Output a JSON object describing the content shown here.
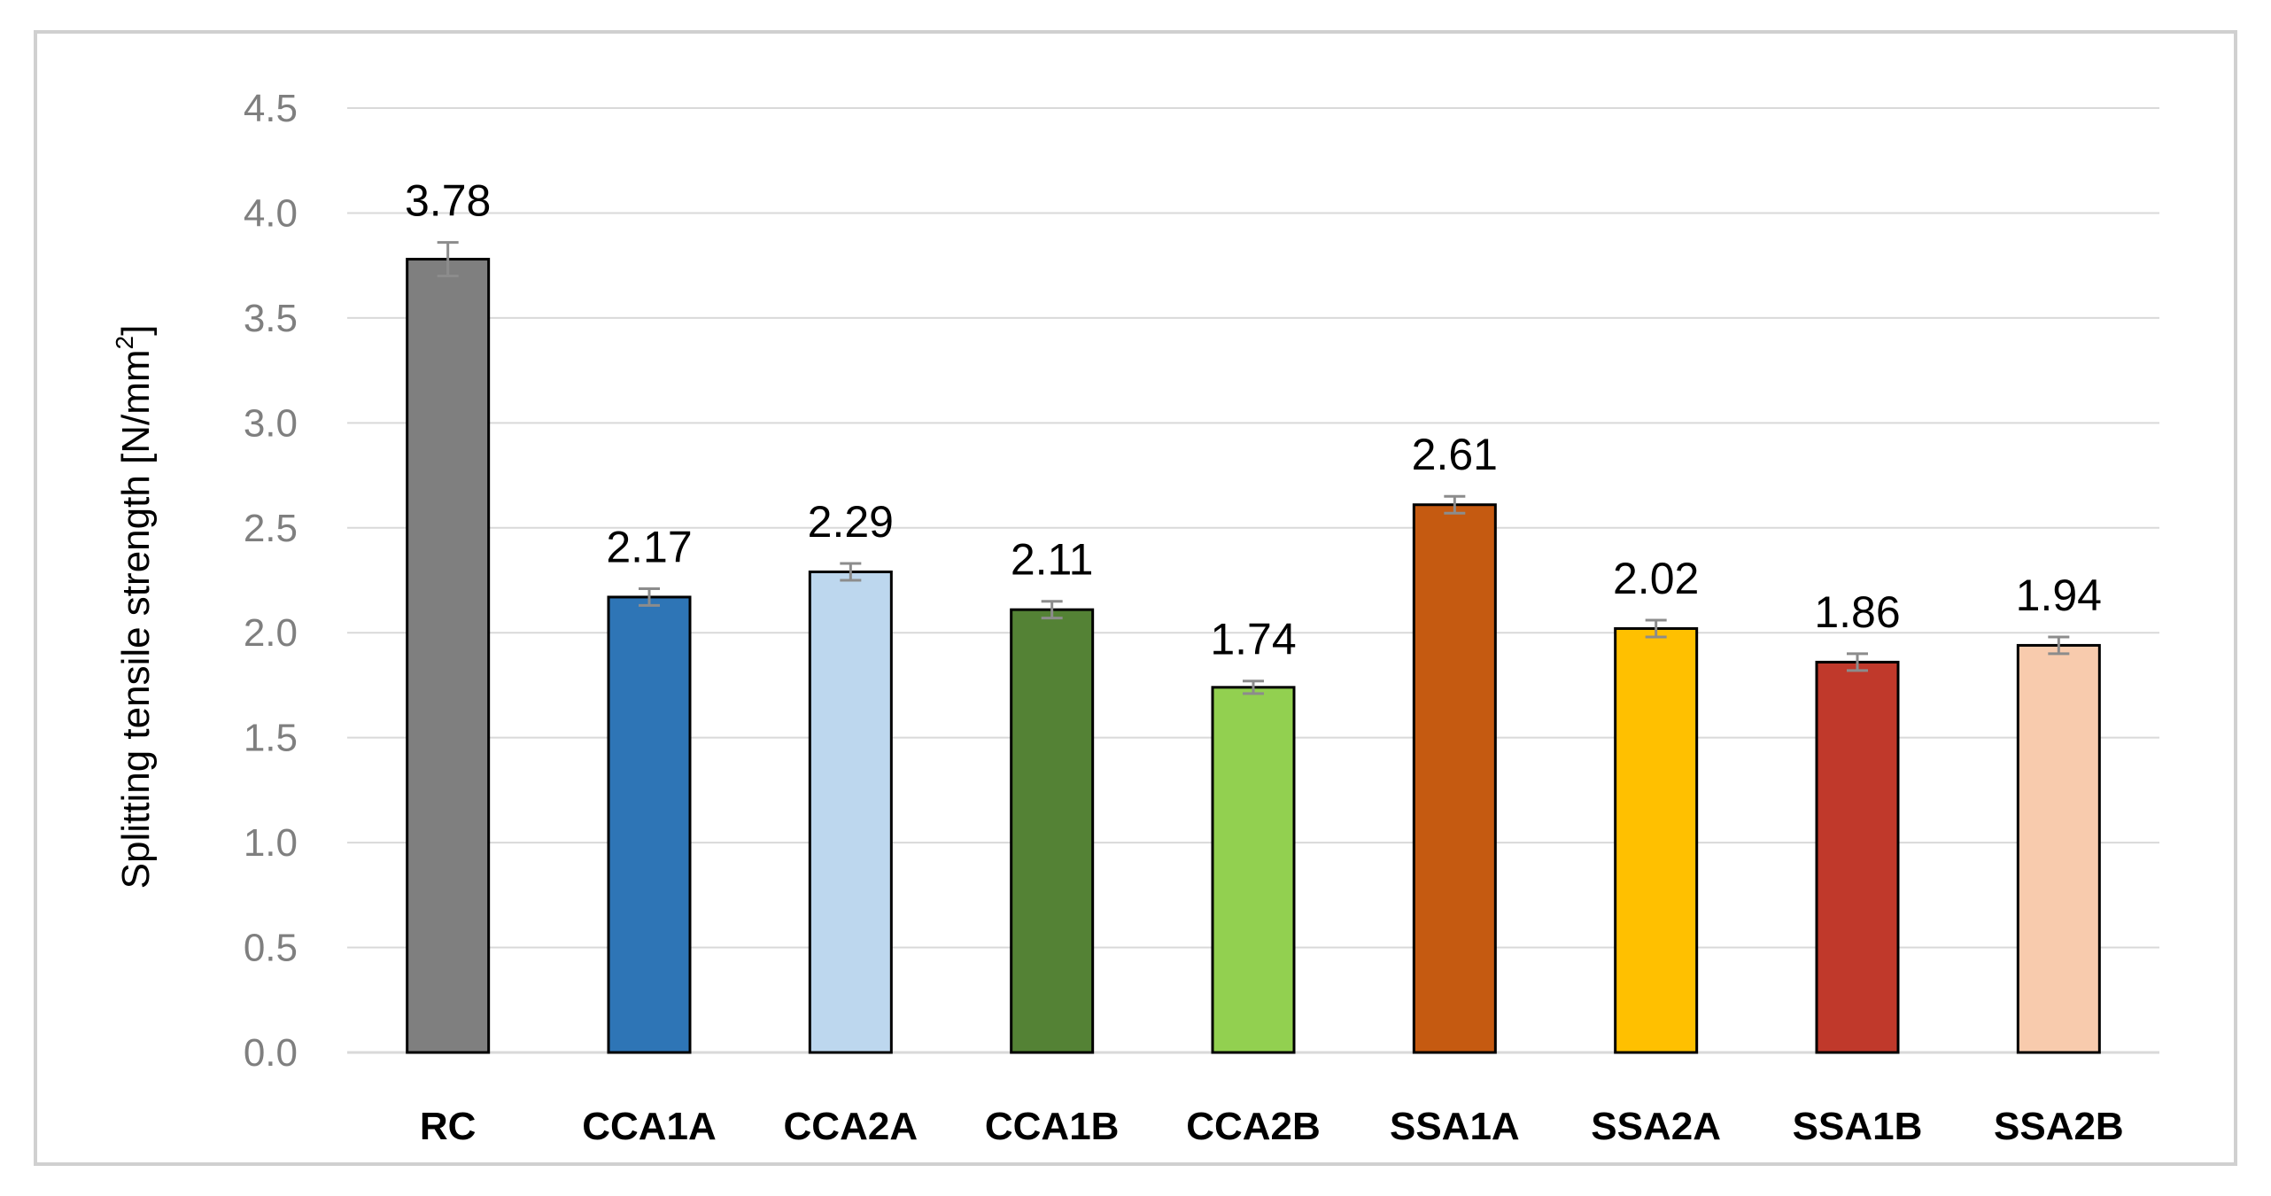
{
  "chart_data": {
    "type": "bar",
    "title": "",
    "xlabel": "",
    "ylabel": "Splitting tensile strength [N/mm",
    "ylabel_superscript": "2",
    "ylabel_suffix": "]",
    "ylim": [
      0,
      4.5
    ],
    "ytick_step": 0.5,
    "yticks": [
      "0.0",
      "0.5",
      "1.0",
      "1.5",
      "2.0",
      "2.5",
      "3.0",
      "3.5",
      "4.0",
      "4.5"
    ],
    "grid": true,
    "categories": [
      "RC",
      "CCA1A",
      "CCA2A",
      "CCA1B",
      "CCA2B",
      "SSA1A",
      "SSA2A",
      "SSA1B",
      "SSA2B"
    ],
    "values": [
      3.78,
      2.17,
      2.29,
      2.11,
      1.74,
      2.61,
      2.02,
      1.86,
      1.94
    ],
    "value_labels": [
      "3.78",
      "2.17",
      "2.29",
      "2.11",
      "1.74",
      "2.61",
      "2.02",
      "1.86",
      "1.94"
    ],
    "errors": [
      0.08,
      0.04,
      0.04,
      0.04,
      0.03,
      0.04,
      0.04,
      0.04,
      0.04
    ],
    "colors": [
      "#7f7f7f",
      "#2e75b6",
      "#bdd7ee",
      "#548235",
      "#92d050",
      "#c55a11",
      "#ffc000",
      "#c0392b",
      "#f8cbad"
    ]
  }
}
